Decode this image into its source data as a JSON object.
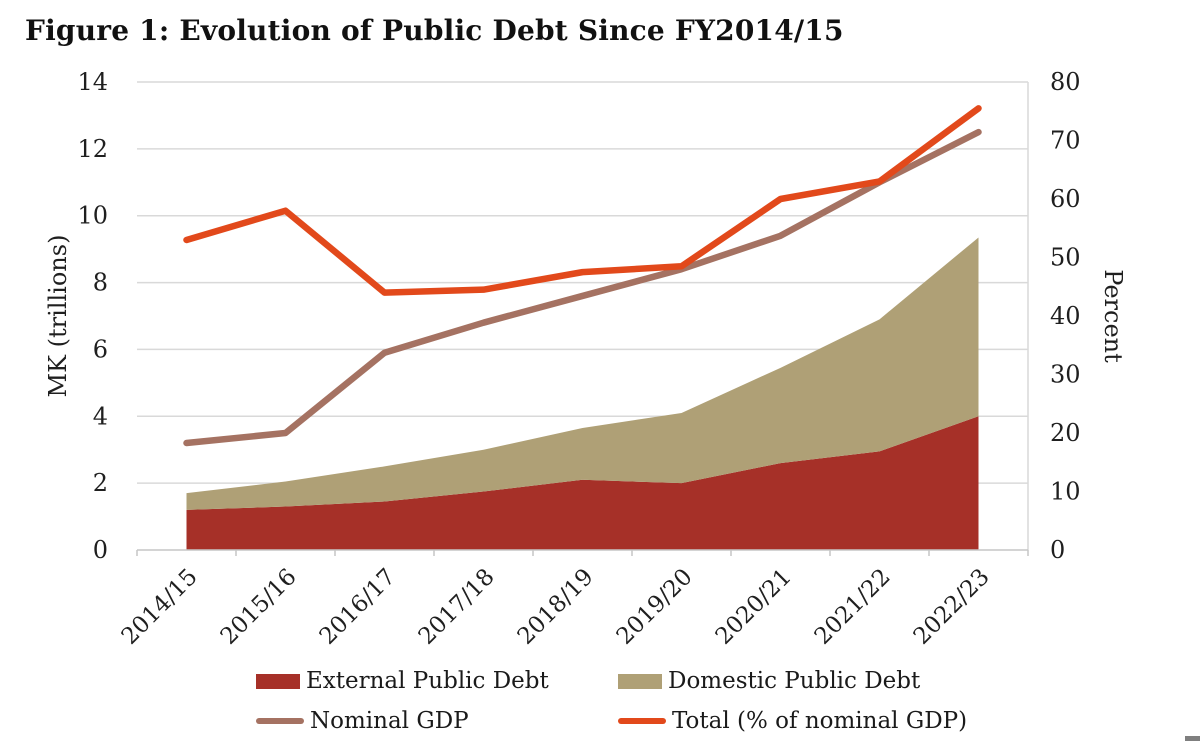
{
  "title": "Figure 1: Evolution of Public Debt Since FY2014/15",
  "colors": {
    "external_area": "#A63028",
    "domestic_area": "#AFA076",
    "nominal_gdp_line": "#A57262",
    "total_pct_line": "#E2491B",
    "gridline": "#D9D9D9",
    "axis_line": "#C6C6C6",
    "text": "#1f1f1f"
  },
  "chart_data": {
    "type": "area",
    "subtype": "stacked-area-with-lines-combo",
    "categories": [
      "2014/15",
      "2015/16",
      "2016/17",
      "2017/18",
      "2018/19",
      "2019/20",
      "2020/21",
      "2021/22",
      "2022/23"
    ],
    "series": [
      {
        "name": "External Public Debt",
        "type": "area",
        "axis": "left",
        "stack": true,
        "color": "#A63028",
        "values": [
          1.2,
          1.3,
          1.45,
          1.75,
          2.1,
          2.0,
          2.6,
          2.95,
          4.0
        ]
      },
      {
        "name": "Domestic Public Debt",
        "type": "area",
        "axis": "left",
        "stack": true,
        "color": "#AFA076",
        "values": [
          0.5,
          0.75,
          1.05,
          1.25,
          1.55,
          2.1,
          2.85,
          3.95,
          5.35
        ]
      },
      {
        "name": "Nominal GDP",
        "type": "line",
        "axis": "left",
        "color": "#A57262",
        "values": [
          3.2,
          3.5,
          5.9,
          6.8,
          7.6,
          8.4,
          9.4,
          11.0,
          12.5
        ]
      },
      {
        "name": "Total (% of nominal GDP)",
        "type": "line",
        "axis": "right",
        "color": "#E2491B",
        "values": [
          53,
          58,
          44,
          44.5,
          47.5,
          48.5,
          60,
          63,
          75.5
        ]
      }
    ],
    "left_axis": {
      "label": "MK (trillions)",
      "min": 0,
      "max": 14,
      "step": 2
    },
    "right_axis": {
      "label": "Percent",
      "min": 0,
      "max": 80,
      "step": 10
    },
    "grid": "horizontal",
    "legend_position": "bottom",
    "legend": [
      "External Public Debt",
      "Domestic Public Debt",
      "Nominal GDP",
      "Total (% of nominal GDP)"
    ]
  }
}
